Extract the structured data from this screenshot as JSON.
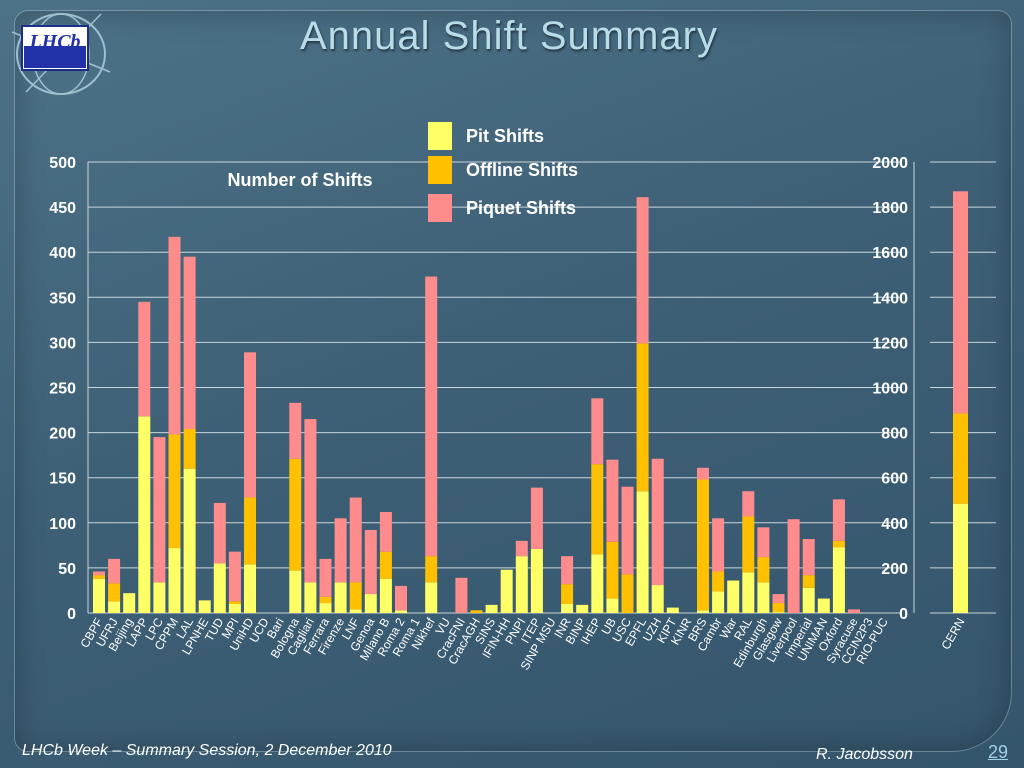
{
  "slide": {
    "title": "Annual Shift Summary",
    "logo_text": "LHCb",
    "footer_left": "LHCb Week – Summary Session, 2 December 2010",
    "footer_right": "R. Jacobsson",
    "page_number": "29"
  },
  "chart_data": [
    {
      "type": "bar",
      "stacked": true,
      "ylabel": "Number of Shifts",
      "ylim": [
        0,
        500
      ],
      "yticks": [
        0,
        50,
        100,
        150,
        200,
        250,
        300,
        350,
        400,
        450,
        500
      ],
      "legend_position": "top",
      "grid": true,
      "categories": [
        "CBPF",
        "UFRJ",
        "Beijing",
        "LAPP",
        "LPC",
        "CPPM",
        "LAL",
        "LPNHE",
        "TUD",
        "MPI",
        "UniHD",
        "UCD",
        "Bari",
        "Bologna",
        "Cagliari",
        "Ferrara",
        "Firenze",
        "LNF",
        "Genoa",
        "Milano B",
        "Roma 2",
        "Roma 1",
        "Nikhef",
        "VU",
        "CracFNI",
        "CracAGH",
        "SINS",
        "IFIN-HH",
        "PNPI",
        "ITEP",
        "SINP MSU",
        "INR",
        "BINP",
        "IHEP",
        "UB",
        "USC",
        "EPFL",
        "UZH",
        "KIPT",
        "KINR",
        "BRS",
        "Cambr",
        "War",
        "RAL",
        "Edinburgh",
        "Glasgow",
        "Liverpool",
        "Imperial",
        "UNIMAN",
        "Oxford",
        "Syracuse",
        "CCIN2P3",
        "RIO-PUC"
      ],
      "series": [
        {
          "name": "Pit Shifts",
          "color": "#ffff66",
          "values": [
            38,
            13,
            22,
            218,
            34,
            72,
            160,
            14,
            55,
            10,
            54,
            0,
            0,
            47,
            34,
            11,
            34,
            4,
            21,
            38,
            3,
            0,
            34,
            0,
            0,
            0,
            9,
            48,
            63,
            71,
            0,
            10,
            9,
            65,
            16,
            0,
            135,
            31,
            6,
            0,
            3,
            24,
            36,
            45,
            34,
            1,
            0,
            28,
            16,
            73,
            0,
            0,
            0
          ]
        },
        {
          "name": "Offline Shifts",
          "color": "#ffc000",
          "values": [
            4,
            20,
            0,
            0,
            0,
            126,
            44,
            0,
            0,
            3,
            74,
            0,
            0,
            124,
            0,
            7,
            0,
            30,
            0,
            30,
            0,
            0,
            29,
            0,
            0,
            3,
            0,
            0,
            0,
            0,
            0,
            22,
            0,
            100,
            63,
            43,
            164,
            0,
            0,
            0,
            145,
            22,
            0,
            62,
            28,
            10,
            0,
            14,
            0,
            7,
            0,
            0,
            0
          ]
        },
        {
          "name": "Piquet Shifts",
          "color": "#ff8c8c",
          "values": [
            4,
            27,
            0,
            127,
            161,
            219,
            191,
            0,
            67,
            55,
            161,
            0,
            0,
            62,
            181,
            42,
            71,
            94,
            71,
            44,
            27,
            0,
            310,
            0,
            39,
            0,
            0,
            0,
            17,
            68,
            0,
            31,
            0,
            73,
            91,
            97,
            162,
            140,
            0,
            0,
            13,
            59,
            0,
            28,
            33,
            10,
            104,
            40,
            0,
            46,
            4,
            0,
            0
          ]
        }
      ]
    },
    {
      "type": "bar",
      "stacked": true,
      "ylim": [
        0,
        2000
      ],
      "yticks": [
        0,
        200,
        400,
        600,
        800,
        1000,
        1200,
        1400,
        1600,
        1800,
        2000
      ],
      "categories": [
        "CERN"
      ],
      "series": [
        {
          "name": "Pit Shifts",
          "values": [
            485
          ]
        },
        {
          "name": "Offline Shifts",
          "values": [
            400
          ]
        },
        {
          "name": "Piquet Shifts",
          "values": [
            985
          ]
        }
      ]
    }
  ]
}
